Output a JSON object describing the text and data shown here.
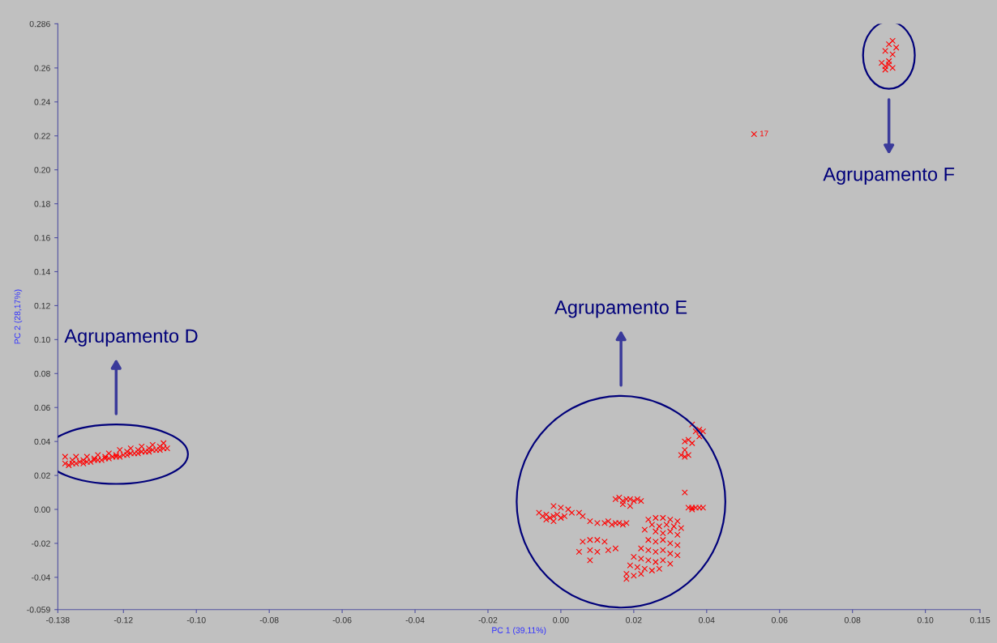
{
  "chart_data": {
    "type": "scatter",
    "xlabel": "PC 1 (39,11%)",
    "ylabel": "PC 2 (28,17%)",
    "xlim": [
      -0.138,
      0.115
    ],
    "ylim": [
      -0.059,
      0.286
    ],
    "xticks": [
      {
        "value": -0.138,
        "label": "-0.138"
      },
      {
        "value": -0.12,
        "label": "-0.12"
      },
      {
        "value": -0.1,
        "label": "-0.10"
      },
      {
        "value": -0.08,
        "label": "-0.08"
      },
      {
        "value": -0.06,
        "label": "-0.06"
      },
      {
        "value": -0.04,
        "label": "-0.04"
      },
      {
        "value": -0.02,
        "label": "-0.02"
      },
      {
        "value": 0,
        "label": "0.00"
      },
      {
        "value": 0.02,
        "label": "0.02"
      },
      {
        "value": 0.04,
        "label": "0.04"
      },
      {
        "value": 0.06,
        "label": "0.06"
      },
      {
        "value": 0.08,
        "label": "0.08"
      },
      {
        "value": 0.1,
        "label": "0.10"
      },
      {
        "value": 0.115,
        "label": "0.115"
      }
    ],
    "yticks": [
      {
        "value": -0.059,
        "label": "-0.059"
      },
      {
        "value": -0.04,
        "label": "-0.04"
      },
      {
        "value": -0.02,
        "label": "-0.02"
      },
      {
        "value": 0,
        "label": "0.00"
      },
      {
        "value": 0.02,
        "label": "0.02"
      },
      {
        "value": 0.04,
        "label": "0.04"
      },
      {
        "value": 0.06,
        "label": "0.06"
      },
      {
        "value": 0.08,
        "label": "0.08"
      },
      {
        "value": 0.1,
        "label": "0.10"
      },
      {
        "value": 0.12,
        "label": "0.12"
      },
      {
        "value": 0.14,
        "label": "0.14"
      },
      {
        "value": 0.16,
        "label": "0.16"
      },
      {
        "value": 0.18,
        "label": "0.18"
      },
      {
        "value": 0.2,
        "label": "0.20"
      },
      {
        "value": 0.22,
        "label": "0.22"
      },
      {
        "value": 0.24,
        "label": "0.24"
      },
      {
        "value": 0.26,
        "label": "0.26"
      },
      {
        "value": 0.286,
        "label": "0.286"
      }
    ],
    "marker": "cross",
    "grid": false,
    "legend": false,
    "series": [
      {
        "color": "#ff0000",
        "x": [
          -0.136,
          -0.135,
          -0.134,
          -0.133,
          -0.132,
          -0.131,
          -0.13,
          -0.129,
          -0.128,
          -0.127,
          -0.126,
          -0.125,
          -0.124,
          -0.123,
          -0.122,
          -0.121,
          -0.12,
          -0.119,
          -0.118,
          -0.117,
          -0.116,
          -0.115,
          -0.114,
          -0.113,
          -0.112,
          -0.111,
          -0.11,
          -0.109,
          -0.108,
          -0.136,
          -0.133,
          -0.13,
          -0.127,
          -0.124,
          -0.121,
          -0.118,
          -0.115,
          -0.112,
          -0.109,
          -0.134,
          -0.131,
          -0.128,
          -0.125,
          -0.122,
          -0.119,
          -0.116,
          -0.113,
          -0.11
        ],
        "values": [
          0.027,
          0.026,
          0.027,
          0.027,
          0.028,
          0.027,
          0.028,
          0.028,
          0.029,
          0.029,
          0.029,
          0.03,
          0.03,
          0.031,
          0.031,
          0.031,
          0.032,
          0.032,
          0.033,
          0.033,
          0.033,
          0.034,
          0.034,
          0.034,
          0.035,
          0.035,
          0.035,
          0.036,
          0.036,
          0.031,
          0.031,
          0.031,
          0.032,
          0.033,
          0.035,
          0.036,
          0.037,
          0.038,
          0.039,
          0.029,
          0.029,
          0.03,
          0.031,
          0.032,
          0.034,
          0.035,
          0.036,
          0.037
        ]
      },
      {
        "color": "#ff0000",
        "x": [
          0.036,
          0.037,
          0.038,
          0.039,
          0.038,
          0.034,
          0.035,
          0.036,
          0.034,
          0.033,
          0.034,
          0.035,
          0.034,
          0.035,
          0.036,
          0.037,
          0.038,
          0.039,
          0.036,
          -0.006,
          -0.005,
          -0.004,
          -0.003,
          -0.002,
          -0.001,
          0.0,
          0.001,
          -0.004,
          -0.002,
          0.0,
          -0.002,
          0.002,
          0.003,
          0.005,
          0.006,
          0.015,
          0.016,
          0.017,
          0.018,
          0.019,
          0.02,
          0.021,
          0.022,
          0.017,
          0.019,
          0.008,
          0.01,
          0.012,
          0.013,
          0.014,
          0.015,
          0.016,
          0.017,
          0.018,
          0.006,
          0.008,
          0.01,
          0.012,
          0.005,
          0.008,
          0.01,
          0.013,
          0.015,
          0.008,
          0.024,
          0.026,
          0.028,
          0.03,
          0.032,
          0.025,
          0.027,
          0.029,
          0.031,
          0.033,
          0.023,
          0.026,
          0.028,
          0.03,
          0.032,
          0.024,
          0.026,
          0.028,
          0.03,
          0.032,
          0.022,
          0.024,
          0.026,
          0.028,
          0.03,
          0.032,
          0.02,
          0.022,
          0.024,
          0.026,
          0.028,
          0.03,
          0.019,
          0.021,
          0.023,
          0.025,
          0.027,
          0.018,
          0.02,
          0.022,
          0.018
        ],
        "values": [
          0.05,
          0.046,
          0.047,
          0.046,
          0.043,
          0.04,
          0.041,
          0.039,
          0.035,
          0.032,
          0.031,
          0.032,
          0.01,
          0.001,
          0.001,
          0.001,
          0.001,
          0.001,
          0.0,
          -0.002,
          -0.004,
          -0.003,
          -0.005,
          -0.004,
          -0.003,
          -0.005,
          -0.004,
          -0.006,
          -0.007,
          0.001,
          0.002,
          0.0,
          -0.002,
          -0.002,
          -0.004,
          0.006,
          0.007,
          0.005,
          0.006,
          0.006,
          0.005,
          0.006,
          0.005,
          0.003,
          0.002,
          -0.007,
          -0.008,
          -0.008,
          -0.007,
          -0.009,
          -0.008,
          -0.008,
          -0.009,
          -0.008,
          -0.019,
          -0.018,
          -0.018,
          -0.019,
          -0.025,
          -0.024,
          -0.025,
          -0.024,
          -0.023,
          -0.03,
          -0.006,
          -0.005,
          -0.005,
          -0.006,
          -0.007,
          -0.009,
          -0.01,
          -0.009,
          -0.01,
          -0.011,
          -0.012,
          -0.013,
          -0.014,
          -0.013,
          -0.015,
          -0.018,
          -0.019,
          -0.018,
          -0.02,
          -0.021,
          -0.023,
          -0.024,
          -0.025,
          -0.024,
          -0.026,
          -0.027,
          -0.028,
          -0.029,
          -0.03,
          -0.031,
          -0.03,
          -0.032,
          -0.033,
          -0.034,
          -0.035,
          -0.036,
          -0.035,
          -0.038,
          -0.039,
          -0.038,
          -0.041
        ]
      },
      {
        "color": "#ff0000",
        "x": [
          0.09,
          0.091,
          0.092,
          0.089,
          0.091,
          0.088,
          0.089,
          0.09,
          0.091,
          0.089,
          0.09
        ],
        "values": [
          0.274,
          0.276,
          0.272,
          0.27,
          0.268,
          0.263,
          0.261,
          0.262,
          0.26,
          0.259,
          0.264
        ]
      },
      {
        "color": "#ff0000",
        "x": [
          0.053
        ],
        "values": [
          0.221
        ]
      }
    ],
    "annotations": [
      "Agrupamento D",
      "Agrupamento E",
      "Agrupamento F",
      {
        "text": "17",
        "x": 0.053,
        "y": 0.221
      }
    ]
  }
}
